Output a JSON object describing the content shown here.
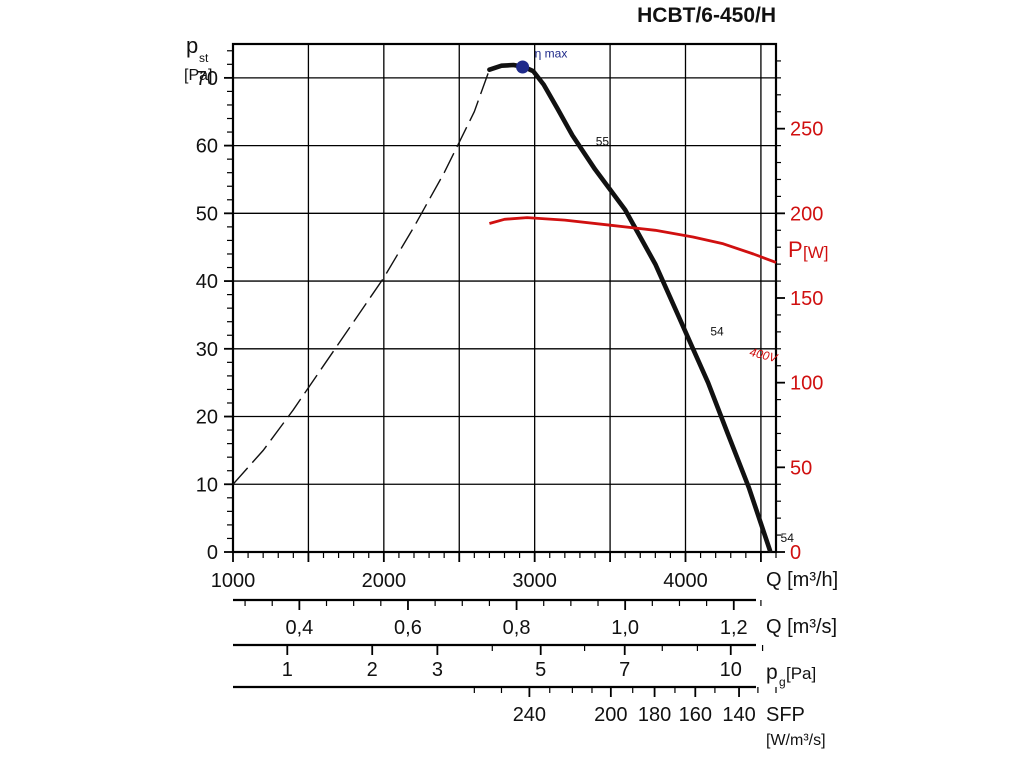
{
  "chart_data": {
    "type": "line",
    "title": "HCBT/6-450/H",
    "colors": {
      "pressure": "#111111",
      "power": "#d01010",
      "eta": "#1f2a8a",
      "axis": "#000000",
      "power_axis": "#d01010"
    },
    "y_axis": {
      "label_main": "p",
      "label_sub": "st",
      "unit": "[Pa]",
      "range": [
        0,
        75
      ],
      "ticks": [
        0,
        10,
        20,
        30,
        40,
        50,
        60,
        70
      ],
      "tick_labels": [
        "0",
        "10",
        "20",
        "30",
        "40",
        "50",
        "60",
        "70"
      ]
    },
    "y2_axis": {
      "label_main": "P",
      "unit": "[W]",
      "range": [
        0,
        300
      ],
      "ticks": [
        0,
        50,
        100,
        150,
        200,
        250
      ],
      "tick_labels": [
        "0",
        "50",
        "100",
        "150",
        "200",
        "250"
      ]
    },
    "x_axis": {
      "label": "Q [m³/h]",
      "range": [
        1000,
        4600
      ],
      "ticks": [
        1000,
        2000,
        3000,
        4000
      ],
      "tick_labels": [
        "1000",
        "2000",
        "3000",
        "4000"
      ],
      "grid": [
        1000,
        1500,
        2000,
        2500,
        3000,
        3500,
        4000,
        4500
      ]
    },
    "secondary_scales": [
      {
        "label": "Q [m³/s]",
        "ticks_q": [
          1440,
          2160,
          2880,
          3600,
          4320
        ],
        "tick_labels": [
          "0,4",
          "0,6",
          "0,8",
          "1,0",
          "1,2"
        ],
        "minor_q": [
          1080,
          1260,
          1620,
          1800,
          1980,
          2340,
          2520,
          2700,
          3060,
          3240,
          3420,
          3780,
          3960,
          4140,
          4500
        ]
      },
      {
        "label_main": "p",
        "label_sub": "g",
        "unit": "[Pa]",
        "ticks_q": [
          1360,
          1923,
          2355,
          3040,
          3597,
          4300
        ],
        "tick_labels": [
          "1",
          "2",
          "3",
          "5",
          "7",
          "10"
        ],
        "minor_q": [
          2719,
          3331,
          3846,
          4079,
          4511
        ]
      },
      {
        "label": "SFP",
        "unit": "[W/m³/s]",
        "ticks_q": [
          2965,
          3505,
          3795,
          4065,
          4355
        ],
        "tick_labels": [
          "240",
          "200",
          "180",
          "160",
          "140"
        ],
        "minor_q": [
          2600,
          2780,
          3100,
          3250,
          3380,
          3650,
          3930,
          4195,
          4480,
          4600
        ]
      }
    ],
    "series": [
      {
        "key": "pressure_stable",
        "x": [
          2700,
          2780,
          2860,
          2930,
          2990,
          3060,
          3150,
          3250,
          3400,
          3600,
          3800,
          3950,
          4050,
          4150,
          4280,
          4420,
          4560
        ],
        "y": [
          71.2,
          71.8,
          71.9,
          71.6,
          71.0,
          69.0,
          65.5,
          61.5,
          56.5,
          50.5,
          42.5,
          35.0,
          30.0,
          25.0,
          17.5,
          9.5,
          0.2
        ]
      },
      {
        "key": "pressure_unstable",
        "x": [
          1000,
          1200,
          1400,
          1600,
          1800,
          2000,
          2200,
          2400,
          2600,
          2700
        ],
        "y": [
          10,
          15,
          21,
          27.5,
          34,
          40.5,
          48,
          56,
          65,
          71.2
        ]
      },
      {
        "key": "power",
        "x": [
          2700,
          2800,
          2950,
          3200,
          3500,
          3800,
          4050,
          4250,
          4450,
          4600
        ],
        "y": [
          194,
          196.5,
          197.5,
          196,
          193,
          190,
          186,
          182,
          176,
          171
        ]
      }
    ],
    "annotations": [
      {
        "text": "η max",
        "x": 3000,
        "y": 73
      },
      {
        "text": "55",
        "x": 3405,
        "y": 60
      },
      {
        "text": "54",
        "x": 4165,
        "y": 32
      },
      {
        "text": "54",
        "x": 4630,
        "y": 1.5
      },
      {
        "text": "400V",
        "x": 4420,
        "y": 29
      }
    ],
    "eta_max_point": {
      "x": 2920,
      "y": 71.6
    },
    "grid": true
  }
}
